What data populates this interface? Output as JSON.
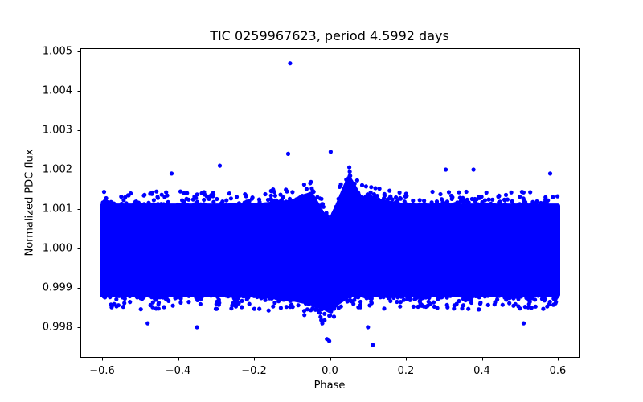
{
  "chart_data": {
    "type": "scatter",
    "title": "TIC 0259967623, period 4.5992 days",
    "xlabel": "Phase",
    "ylabel": "Normalized PDC flux",
    "xlim": [
      -0.65,
      0.65
    ],
    "ylim": [
      0.99775,
      1.00505
    ],
    "xticks": [
      -0.6,
      -0.4,
      -0.2,
      0.0,
      0.2,
      0.4,
      0.6
    ],
    "xtick_labels": [
      "−0.6",
      "−0.4",
      "−0.2",
      "0.0",
      "0.2",
      "0.4",
      "0.6"
    ],
    "yticks": [
      0.998,
      0.999,
      1.0,
      1.001,
      1.002,
      1.003,
      1.004,
      1.005
    ],
    "ytick_labels": [
      "0.998",
      "0.999",
      "1.000",
      "1.001",
      "1.002",
      "1.003",
      "1.004",
      "1.005"
    ],
    "grid": false,
    "legend": null,
    "marker_color": "#0000ff",
    "marker": "circle",
    "series": [
      {
        "name": "phase-folded light curve",
        "description": "Dense band of points spanning phase -0.6 to 0.6, centered at flux 1.000 with typical spread ~0.9987 to 1.0012; dip near phase 0.0 (transit-like, min ~0.9983) and bump near phase 0.05 (~1.0019).",
        "band_envelope": {
          "x": [
            -0.6,
            -0.4,
            -0.2,
            -0.1,
            -0.05,
            -0.02,
            0.0,
            0.02,
            0.05,
            0.08,
            0.2,
            0.4,
            0.6
          ],
          "upper": [
            1.0012,
            1.0012,
            1.0012,
            1.0013,
            1.0015,
            1.001,
            1.0008,
            1.0012,
            1.0019,
            1.0014,
            1.0012,
            1.0012,
            1.0012
          ],
          "lower": [
            0.9987,
            0.9987,
            0.9987,
            0.9986,
            0.9985,
            0.9984,
            0.9983,
            0.9985,
            0.9987,
            0.9987,
            0.9987,
            0.9987,
            0.9987
          ]
        },
        "outliers": [
          {
            "x": -0.105,
            "y": 1.0047
          },
          {
            "x": -0.11,
            "y": 1.0024
          },
          {
            "x": 0.002,
            "y": 1.00245
          },
          {
            "x": -0.29,
            "y": 1.0021
          },
          {
            "x": 0.378,
            "y": 1.002
          },
          {
            "x": 0.305,
            "y": 1.002
          },
          {
            "x": 0.58,
            "y": 1.0019
          },
          {
            "x": -0.417,
            "y": 1.0019
          },
          {
            "x": 0.113,
            "y": 0.99755
          },
          {
            "x": -0.002,
            "y": 0.99765
          },
          {
            "x": -0.008,
            "y": 0.9977
          },
          {
            "x": 0.1,
            "y": 0.998
          },
          {
            "x": -0.35,
            "y": 0.998
          },
          {
            "x": -0.02,
            "y": 0.9981
          },
          {
            "x": 0.51,
            "y": 0.9981
          },
          {
            "x": -0.48,
            "y": 0.9981
          }
        ]
      }
    ]
  }
}
